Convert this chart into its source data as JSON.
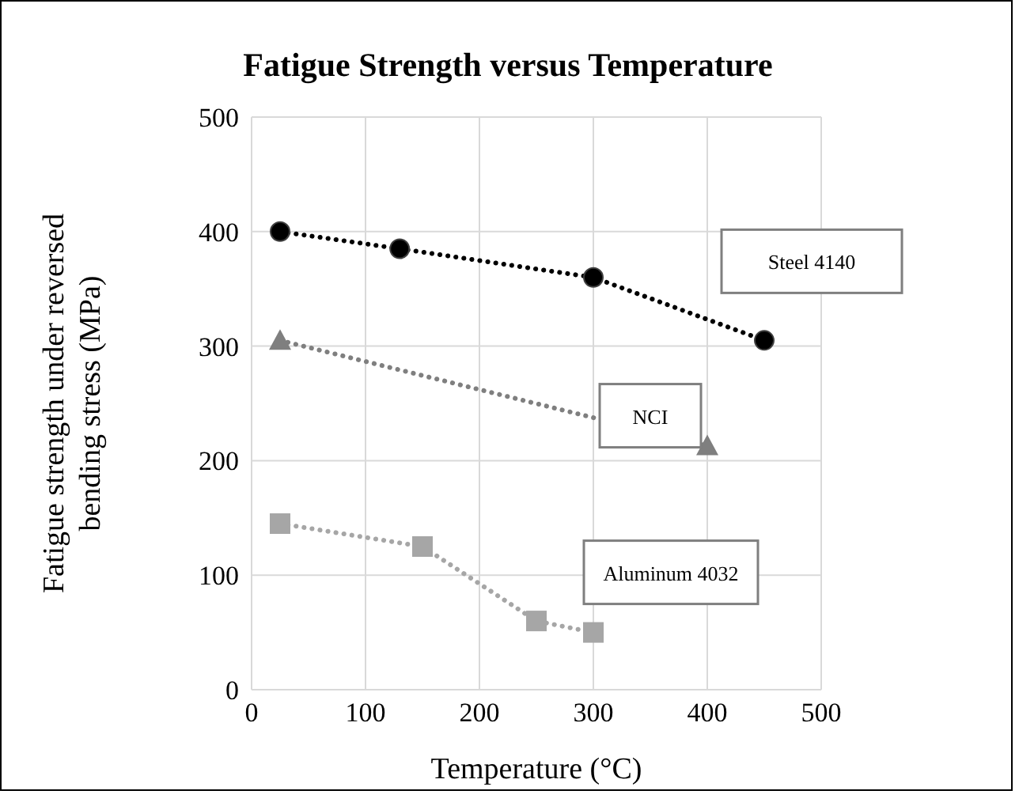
{
  "chart_data": {
    "type": "line",
    "title": "Fatigue Strength versus Temperature",
    "xlabel": "Temperature (°C)",
    "ylabel": "Fatigue strength under reversed bending stress (MPa)",
    "xlim": [
      0,
      500
    ],
    "xticks": [
      0,
      100,
      200,
      300,
      400,
      500
    ],
    "ylim": [
      0,
      500
    ],
    "yticks": [
      0,
      100,
      200,
      300,
      400,
      500
    ],
    "grid": true,
    "line_style": "dotted",
    "series": [
      {
        "name": "Steel 4140",
        "color": "#000000",
        "marker": "circle",
        "x": [
          25,
          130,
          300,
          450
        ],
        "values": [
          400,
          385,
          360,
          305
        ]
      },
      {
        "name": "NCI",
        "color": "#7f7f7f",
        "marker": "triangle",
        "x": [
          25,
          400
        ],
        "values": [
          305,
          213
        ]
      },
      {
        "name": "Aluminum 4032",
        "color": "#a6a6a6",
        "marker": "square",
        "x": [
          25,
          150,
          250,
          300
        ],
        "values": [
          145,
          125,
          60,
          50
        ]
      }
    ]
  }
}
